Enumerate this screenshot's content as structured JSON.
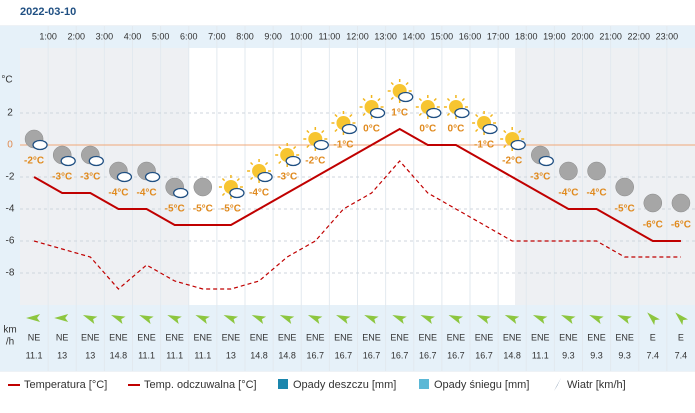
{
  "chart_data": {
    "type": "line",
    "title": "2022-03-10",
    "x_labels": [
      "1:00",
      "2:00",
      "3:00",
      "4:00",
      "5:00",
      "6:00",
      "7:00",
      "8:00",
      "9:00",
      "10:00",
      "11:00",
      "12:00",
      "13:00",
      "14:00",
      "15:00",
      "16:00",
      "17:00",
      "18:00",
      "19:00",
      "20:00",
      "21:00",
      "22:00",
      "23:00"
    ],
    "ylabel": "°C",
    "ylim": [
      -10,
      6
    ],
    "yticks": [
      2,
      0,
      -2,
      -4,
      -6,
      -8
    ],
    "grid": true,
    "series": [
      {
        "name": "Temperatura [°C]",
        "color": "#c00000",
        "style": "solid",
        "values": [
          -2,
          -3,
          -3,
          -4,
          -4,
          -5,
          -5,
          -5,
          -4,
          -3,
          -2,
          -1,
          0,
          1,
          0,
          0,
          -1,
          -2,
          -3,
          -4,
          -4,
          -5,
          -6,
          -6
        ],
        "value_labels": [
          "-2°C",
          "-3°C",
          "-3°C",
          "-4°C",
          "-4°C",
          "-5°C",
          "-5°C",
          "-5°C",
          "-4°C",
          "-3°C",
          "-2°C",
          "-1°C",
          "0°C",
          "1°C",
          "0°C",
          "0°C",
          "-1°C",
          "-2°C",
          "-3°C",
          "-4°C",
          "-4°C",
          "-5°C",
          "-6°C",
          "-6°C"
        ]
      },
      {
        "name": "Temp. odczuwalna [°C]",
        "color": "#c00000",
        "style": "dashed",
        "values": [
          -6,
          -6.5,
          -7,
          -9,
          -7.5,
          -8.5,
          -9,
          -9,
          -8.5,
          -7,
          -6,
          -4,
          -3,
          -1,
          -3,
          -4,
          -5,
          -6,
          -6,
          -6,
          -6,
          -7,
          -7,
          -7
        ]
      }
    ],
    "legend_extra": [
      {
        "name": "Opady deszczu [mm]",
        "color": "#1a86ad"
      },
      {
        "name": "Opady śniegu [mm]",
        "color": "#5bb8d6"
      },
      {
        "name": "Wiatr [km/h]",
        "color": "#2a4f7a"
      }
    ],
    "wind": {
      "unit_labels": [
        "km",
        "/h"
      ],
      "directions": [
        "NE",
        "NE",
        "ENE",
        "ENE",
        "ENE",
        "ENE",
        "ENE",
        "ENE",
        "ENE",
        "ENE",
        "ENE",
        "ENE",
        "ENE",
        "ENE",
        "ENE",
        "ENE",
        "ENE",
        "ENE",
        "ENE",
        "ENE",
        "ENE",
        "ENE",
        "E",
        "E"
      ],
      "speeds": [
        11.1,
        13,
        13,
        14.8,
        11.1,
        11.1,
        11.1,
        13,
        14.8,
        14.8,
        16.7,
        16.7,
        16.7,
        16.7,
        16.7,
        16.7,
        16.7,
        14.8,
        11.1,
        9.3,
        9.3,
        9.3,
        7.4,
        7.4
      ]
    }
  }
}
